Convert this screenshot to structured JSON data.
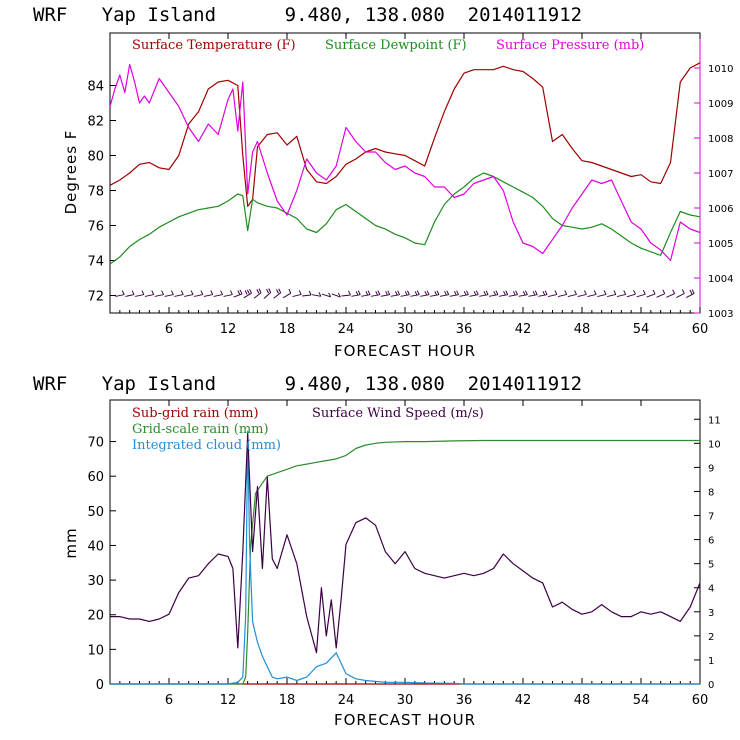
{
  "colors": {
    "temperature": "#a00000",
    "dewpoint": "#1e8c1e",
    "pressure": "#e000e0",
    "subgrid_rain": "#a00000",
    "gridscale_rain": "#2e8b2e",
    "cloud": "#1f8fd6",
    "wind": "#3c0044",
    "wind_barb": "#3c0044"
  },
  "chart_data": [
    {
      "type": "line",
      "title": "WRF   Yap Island      9.480, 138.080  2014011912",
      "xlabel": "FORECAST HOUR",
      "ylabel": "Degrees F",
      "xlim": [
        0,
        60
      ],
      "ylim": [
        71,
        87
      ],
      "y2lim": [
        1003,
        1011
      ],
      "x_ticks": [
        6,
        12,
        18,
        24,
        30,
        36,
        42,
        48,
        54,
        60
      ],
      "x_tick_labels": [
        "6",
        "12",
        "18",
        "24",
        "30",
        "36",
        "42",
        "48",
        "54",
        "60"
      ],
      "y_ticks": [
        72,
        74,
        76,
        78,
        80,
        82,
        84
      ],
      "y_tick_labels": [
        "72",
        "74",
        "76",
        "78",
        "80",
        "82",
        "84"
      ],
      "y2_ticks": [
        1003,
        1004,
        1005,
        1006,
        1007,
        1008,
        1009,
        1010
      ],
      "y2_tick_labels": [
        "1003",
        "1004",
        "1005",
        "1006",
        "1007",
        "1008",
        "1009",
        "1010"
      ],
      "legend": [
        "Surface Temperature (F)",
        "Surface Dewpoint (F)",
        "Surface Pressure (mb)"
      ],
      "series": [
        {
          "name": "Surface Temperature (F)",
          "axis": "left",
          "x": [
            0,
            1,
            2,
            3,
            4,
            5,
            6,
            7,
            8,
            9,
            10,
            11,
            12,
            13,
            13.5,
            14,
            14.5,
            15,
            16,
            17,
            18,
            19,
            20,
            21,
            22,
            23,
            24,
            25,
            26,
            27,
            28,
            29,
            30,
            31,
            32,
            33,
            34,
            35,
            36,
            37,
            38,
            39,
            40,
            41,
            42,
            43,
            44,
            45,
            46,
            47,
            48,
            49,
            50,
            51,
            52,
            53,
            54,
            55,
            56,
            57,
            58,
            59,
            60
          ],
          "y": [
            78.3,
            78.6,
            79.0,
            79.5,
            79.6,
            79.3,
            79.2,
            80.0,
            81.8,
            82.5,
            83.8,
            84.2,
            84.3,
            84.0,
            80.0,
            77.1,
            77.5,
            80.5,
            81.2,
            81.3,
            80.6,
            81.1,
            79.2,
            78.5,
            78.4,
            78.8,
            79.5,
            79.8,
            80.2,
            80.4,
            80.2,
            80.1,
            80.0,
            79.7,
            79.4,
            81.0,
            82.5,
            83.8,
            84.7,
            84.9,
            84.9,
            84.9,
            85.1,
            84.9,
            84.8,
            84.4,
            83.9,
            80.8,
            81.2,
            80.4,
            79.7,
            79.6,
            79.4,
            79.2,
            79.0,
            78.8,
            78.9,
            78.5,
            78.4,
            79.6,
            84.2,
            85.0,
            85.3
          ]
        },
        {
          "name": "Surface Dewpoint (F)",
          "axis": "left",
          "x": [
            0,
            1,
            2,
            3,
            4,
            5,
            6,
            7,
            8,
            9,
            10,
            11,
            12,
            13,
            13.5,
            14,
            14.5,
            15,
            16,
            17,
            18,
            19,
            20,
            21,
            22,
            23,
            24,
            25,
            26,
            27,
            28,
            29,
            30,
            31,
            32,
            33,
            34,
            35,
            36,
            37,
            38,
            39,
            40,
            41,
            42,
            43,
            44,
            45,
            46,
            47,
            48,
            49,
            50,
            51,
            52,
            53,
            54,
            55,
            56,
            57,
            58,
            59,
            60
          ],
          "y": [
            73.8,
            74.2,
            74.8,
            75.2,
            75.5,
            75.9,
            76.2,
            76.5,
            76.7,
            76.9,
            77.0,
            77.1,
            77.4,
            77.8,
            77.7,
            75.7,
            77.5,
            77.3,
            77.1,
            77.0,
            76.7,
            76.4,
            75.8,
            75.6,
            76.1,
            76.9,
            77.2,
            76.8,
            76.4,
            76.0,
            75.8,
            75.5,
            75.3,
            75.0,
            74.9,
            76.2,
            77.2,
            77.8,
            78.2,
            78.7,
            79.0,
            78.8,
            78.5,
            78.2,
            77.9,
            77.6,
            77.1,
            76.4,
            76.0,
            75.9,
            75.8,
            75.9,
            76.1,
            75.8,
            75.4,
            75.0,
            74.7,
            74.5,
            74.3,
            75.6,
            76.8,
            76.6,
            76.5
          ]
        },
        {
          "name": "Surface Pressure (mb)",
          "axis": "right",
          "x": [
            0,
            0.5,
            1,
            1.5,
            2,
            2.5,
            3,
            3.5,
            4,
            5,
            6,
            7,
            8,
            9,
            10,
            11,
            12,
            12.5,
            13,
            13.5,
            14,
            14.5,
            15,
            16,
            17,
            18,
            19,
            20,
            21,
            22,
            23,
            24,
            25,
            26,
            27,
            28,
            29,
            30,
            31,
            32,
            33,
            34,
            35,
            36,
            37,
            38,
            39,
            40,
            41,
            42,
            43,
            44,
            45,
            46,
            47,
            48,
            49,
            50,
            51,
            52,
            53,
            54,
            55,
            56,
            57,
            58,
            59,
            60
          ],
          "y": [
            1008.9,
            1009.4,
            1009.8,
            1009.3,
            1010.1,
            1009.6,
            1009.0,
            1009.2,
            1009.0,
            1009.7,
            1009.3,
            1008.9,
            1008.3,
            1007.9,
            1008.4,
            1008.1,
            1009.1,
            1009.4,
            1008.2,
            1009.6,
            1006.4,
            1007.6,
            1007.9,
            1007.0,
            1006.2,
            1005.8,
            1006.5,
            1007.4,
            1007.0,
            1006.8,
            1007.2,
            1008.3,
            1007.9,
            1007.6,
            1007.6,
            1007.3,
            1007.1,
            1007.2,
            1007.0,
            1006.9,
            1006.6,
            1006.6,
            1006.3,
            1006.4,
            1006.7,
            1006.8,
            1006.9,
            1006.5,
            1005.6,
            1005.0,
            1004.9,
            1004.7,
            1005.1,
            1005.5,
            1006.0,
            1006.4,
            1006.8,
            1006.7,
            1006.8,
            1006.2,
            1005.6,
            1005.4,
            1005.0,
            1004.8,
            1004.5,
            1005.6,
            1005.4,
            1005.3
          ]
        }
      ],
      "wind_barbs": {
        "name": "Wind barbs",
        "x": [
          1,
          2,
          3,
          4,
          5,
          6,
          7,
          8,
          9,
          10,
          11,
          12,
          13,
          14,
          15,
          16,
          17,
          18,
          19,
          20,
          21,
          22,
          23,
          24,
          25,
          26,
          27,
          28,
          29,
          30,
          31,
          32,
          33,
          34,
          35,
          36,
          37,
          38,
          39,
          40,
          41,
          42,
          43,
          44,
          45,
          46,
          47,
          48,
          49,
          50,
          51,
          52,
          53,
          54,
          55,
          56,
          57,
          58,
          59
        ],
        "speed_ms": [
          3,
          3,
          3,
          3,
          3,
          3,
          3,
          3,
          3,
          3,
          3,
          3,
          5,
          8,
          6,
          5,
          4,
          3,
          3,
          2,
          1,
          2,
          2,
          2,
          6,
          6,
          6,
          6,
          5,
          5,
          5,
          5,
          4,
          4,
          4,
          4,
          4,
          4,
          4,
          5,
          5,
          5,
          5,
          4,
          3,
          3,
          3,
          3,
          3,
          3,
          3,
          3,
          3,
          3,
          2,
          2,
          3,
          3,
          4
        ],
        "tilt": [
          0.35,
          0.35,
          0.35,
          0.35,
          0.35,
          0.35,
          0.35,
          0.35,
          0.35,
          0.35,
          0.35,
          0.35,
          0.6,
          0.9,
          1.1,
          1.2,
          1.1,
          0.9,
          0.4,
          0.2,
          -0.3,
          -0.5,
          -0.6,
          0.2,
          0.3,
          0.3,
          0.3,
          0.3,
          0.3,
          0.3,
          0.3,
          0.3,
          0.3,
          0.3,
          0.3,
          0.3,
          0.3,
          0.3,
          0.3,
          0.3,
          0.3,
          0.3,
          0.3,
          0.3,
          0.4,
          0.4,
          0.4,
          0.4,
          0.4,
          0.4,
          0.4,
          0.4,
          0.5,
          0.5,
          0.6,
          0.7,
          0.7,
          0.8,
          0.8
        ]
      }
    },
    {
      "type": "line",
      "title": "WRF   Yap Island      9.480, 138.080  2014011912",
      "xlabel": "FORECAST HOUR",
      "ylabel": "mm",
      "xlim": [
        0,
        60
      ],
      "ylim": [
        0,
        82
      ],
      "y2lim": [
        0,
        11.8
      ],
      "x_ticks": [
        6,
        12,
        18,
        24,
        30,
        36,
        42,
        48,
        54,
        60
      ],
      "x_tick_labels": [
        "6",
        "12",
        "18",
        "24",
        "30",
        "36",
        "42",
        "48",
        "54",
        "60"
      ],
      "y_ticks": [
        0,
        10,
        20,
        30,
        40,
        50,
        60,
        70
      ],
      "y_tick_labels": [
        "0",
        "10",
        "20",
        "30",
        "40",
        "50",
        "60",
        "70"
      ],
      "y2_ticks": [
        0,
        1,
        2,
        3,
        4,
        5,
        6,
        7,
        8,
        9,
        10,
        11
      ],
      "y2_tick_labels": [
        "0",
        "1",
        "2",
        "3",
        "4",
        "5",
        "6",
        "7",
        "8",
        "9",
        "10",
        "11"
      ],
      "legend": [
        "Sub-grid rain (mm)",
        "Grid-scale rain (mm)",
        "Integrated cloud (mm)",
        "Surface Wind Speed (m/s)"
      ],
      "series": [
        {
          "name": "Sub-grid rain (mm)",
          "axis": "left",
          "x": [
            0,
            60
          ],
          "y": [
            0,
            0
          ]
        },
        {
          "name": "Grid-scale rain (mm)",
          "axis": "left",
          "x": [
            0,
            13.5,
            13.8,
            14,
            14.3,
            14.8,
            15.5,
            16,
            17,
            18,
            19,
            20,
            21,
            22,
            23,
            24,
            25,
            26,
            27,
            28,
            30,
            32,
            35,
            38,
            40,
            45,
            50,
            55,
            60
          ],
          "y": [
            0,
            0,
            2,
            15,
            40,
            55,
            58,
            60,
            61,
            62,
            63,
            63.5,
            64,
            64.5,
            65,
            66,
            68,
            69,
            69.5,
            69.8,
            70,
            70,
            70.2,
            70.3,
            70.3,
            70.3,
            70.3,
            70.3,
            70.3
          ]
        },
        {
          "name": "Integrated cloud (mm)",
          "axis": "left",
          "x": [
            0,
            12,
            13,
            13.5,
            13.8,
            14,
            14.2,
            14.5,
            15,
            15.5,
            16,
            16.5,
            17,
            18,
            19,
            20,
            21,
            22,
            23,
            23.5,
            24,
            25,
            26,
            28,
            30,
            32,
            35,
            36,
            40,
            60
          ],
          "y": [
            0,
            0,
            0.5,
            2,
            20,
            73,
            40,
            18,
            12,
            8,
            5,
            2,
            1.5,
            2,
            1.0,
            2,
            5,
            6,
            9,
            6,
            3,
            1.5,
            1.0,
            0.5,
            0.5,
            0.3,
            0.2,
            0,
            0,
            0
          ]
        },
        {
          "name": "Surface Wind Speed (m/s)",
          "axis": "right",
          "x": [
            0,
            1,
            2,
            3,
            4,
            5,
            6,
            7,
            8,
            9,
            10,
            11,
            12,
            12.5,
            13,
            13.5,
            14,
            14.5,
            15,
            15.5,
            16,
            16.5,
            17,
            18,
            19,
            20,
            21,
            21.5,
            22,
            22.5,
            23,
            23.5,
            24,
            25,
            26,
            27,
            28,
            29,
            30,
            31,
            32,
            33,
            34,
            35,
            36,
            37,
            38,
            39,
            40,
            41,
            42,
            43,
            44,
            45,
            46,
            47,
            48,
            49,
            50,
            51,
            52,
            53,
            54,
            55,
            56,
            57,
            58,
            59,
            60
          ],
          "y": [
            2.8,
            2.8,
            2.7,
            2.7,
            2.6,
            2.7,
            2.9,
            3.8,
            4.4,
            4.5,
            5.0,
            5.4,
            5.3,
            4.8,
            1.5,
            5.5,
            10.4,
            5.5,
            8.2,
            4.8,
            8.6,
            5.2,
            4.8,
            6.2,
            5.0,
            2.8,
            1.3,
            4.0,
            2.0,
            3.5,
            1.5,
            3.5,
            5.8,
            6.7,
            6.9,
            6.6,
            5.5,
            5.0,
            5.5,
            4.8,
            4.6,
            4.5,
            4.4,
            4.5,
            4.6,
            4.5,
            4.6,
            4.8,
            5.4,
            5.0,
            4.7,
            4.4,
            4.2,
            3.2,
            3.4,
            3.1,
            2.9,
            3.0,
            3.3,
            3.0,
            2.8,
            2.8,
            3.0,
            2.9,
            3.0,
            2.8,
            2.6,
            3.2,
            4.2
          ]
        }
      ]
    }
  ]
}
